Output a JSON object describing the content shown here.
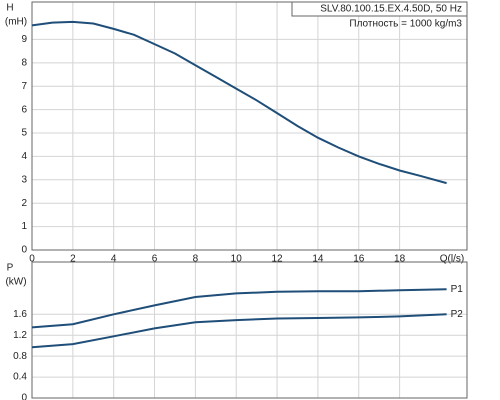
{
  "chart_data": [
    {
      "type": "line",
      "title": "SLV.80.100.15.EX.4.50D, 50 Hz",
      "subtitle": "Плотность = 1000 kg/m3",
      "ylabel": "H",
      "yunit": "(mH)",
      "xlabel": "Q(l/s)",
      "x": [
        0,
        1,
        2,
        3,
        4,
        5,
        6,
        7,
        8,
        9,
        10,
        11,
        12,
        13,
        14,
        15,
        16,
        17,
        18,
        19,
        20.3
      ],
      "values": [
        9.6,
        9.72,
        9.75,
        9.68,
        9.45,
        9.2,
        8.8,
        8.4,
        7.9,
        7.4,
        6.9,
        6.4,
        5.85,
        5.3,
        4.8,
        4.38,
        4.0,
        3.68,
        3.4,
        3.17,
        2.86
      ],
      "color": "#1f4e79",
      "xlim": [
        0,
        21.3
      ],
      "ylim": [
        0,
        10.6
      ],
      "xticks": [
        0,
        2,
        4,
        6,
        8,
        10,
        12,
        14,
        16,
        18
      ],
      "yticks": [
        0,
        1,
        2,
        3,
        4,
        5,
        6,
        7,
        8,
        9
      ],
      "grid": true
    },
    {
      "type": "line",
      "ylabel": "P",
      "yunit": "(kW)",
      "x": [
        0,
        2,
        4,
        6,
        8,
        10,
        12,
        14,
        16,
        18,
        20.3
      ],
      "series": [
        {
          "name": "P1",
          "color": "#1f4e79",
          "values": [
            1.35,
            1.41,
            1.6,
            1.77,
            1.93,
            2.0,
            2.03,
            2.04,
            2.04,
            2.06,
            2.08
          ]
        },
        {
          "name": "P2",
          "color": "#1f4e79",
          "values": [
            0.97,
            1.03,
            1.18,
            1.33,
            1.45,
            1.49,
            1.52,
            1.53,
            1.54,
            1.56,
            1.6
          ]
        }
      ],
      "xlim": [
        0,
        21.3
      ],
      "ylim": [
        0,
        2.6
      ],
      "xticks": [
        0,
        2,
        4,
        6,
        8,
        10,
        12,
        14,
        16,
        18
      ],
      "yticks": [
        0,
        0.4,
        0.8,
        1.2,
        1.6
      ],
      "grid": true
    }
  ]
}
